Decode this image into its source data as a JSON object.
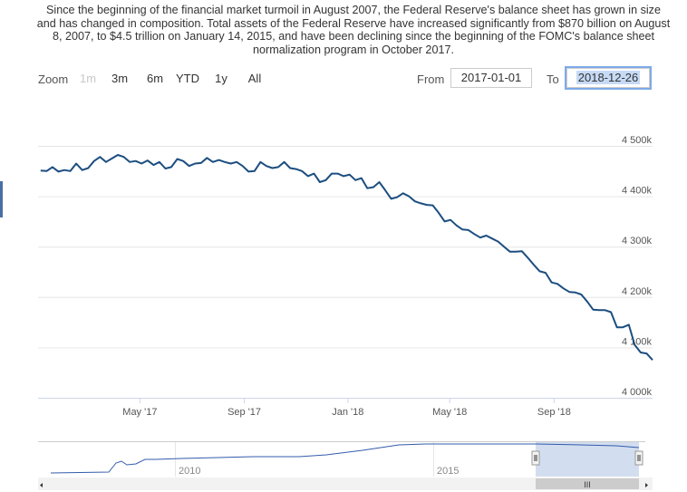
{
  "description": "Since the beginning of the financial market turmoil in August 2007, the Federal Reserve's balance sheet has grown in size and has changed in composition. Total assets of the Federal Reserve have increased significantly from $870 billion on August 8, 2007, to $4.5 trillion on January 14, 2015, and have been declining since the beginning of the FOMC's balance sheet normalization program in October 2017.",
  "range_selector": {
    "zoom_label": "Zoom",
    "buttons": [
      "1m",
      "3m",
      "6m",
      "YTD",
      "1y",
      "All"
    ],
    "from_label": "From",
    "from_value": "2017-01-01",
    "to_label": "To",
    "to_value": "2018-12-26"
  },
  "colors": {
    "line": "#1c4e80",
    "grid": "#e6e6e6",
    "navigator_mask": "#c3d2ea",
    "accent": "#4a6fa5"
  },
  "chart_data": {
    "type": "line",
    "x_range": [
      "2017-01-01",
      "2018-12-26"
    ],
    "ylim": [
      4000000,
      4500000
    ],
    "y_ticks": [
      {
        "value": 4000000,
        "label": "4 000k"
      },
      {
        "value": 4100000,
        "label": "4 100k"
      },
      {
        "value": 4200000,
        "label": "4 200k"
      },
      {
        "value": 4300000,
        "label": "4 300k"
      },
      {
        "value": 4400000,
        "label": "4 400k"
      },
      {
        "value": 4500000,
        "label": "4 500k"
      }
    ],
    "x_ticks": [
      {
        "date": "2017-05-01",
        "label": "May '17"
      },
      {
        "date": "2017-09-01",
        "label": "Sep '17"
      },
      {
        "date": "2018-01-01",
        "label": "Jan '18"
      },
      {
        "date": "2018-05-01",
        "label": "May '18"
      },
      {
        "date": "2018-09-01",
        "label": "Sep '18"
      }
    ],
    "x": [
      "2017-01-04",
      "2017-01-11",
      "2017-01-18",
      "2017-01-25",
      "2017-02-01",
      "2017-02-08",
      "2017-02-15",
      "2017-02-22",
      "2017-03-01",
      "2017-03-08",
      "2017-03-15",
      "2017-03-22",
      "2017-03-29",
      "2017-04-05",
      "2017-04-12",
      "2017-04-19",
      "2017-04-26",
      "2017-05-03",
      "2017-05-10",
      "2017-05-17",
      "2017-05-24",
      "2017-05-31",
      "2017-06-07",
      "2017-06-14",
      "2017-06-21",
      "2017-06-28",
      "2017-07-05",
      "2017-07-12",
      "2017-07-19",
      "2017-07-26",
      "2017-08-02",
      "2017-08-09",
      "2017-08-16",
      "2017-08-23",
      "2017-08-30",
      "2017-09-06",
      "2017-09-13",
      "2017-09-20",
      "2017-09-27",
      "2017-10-04",
      "2017-10-11",
      "2017-10-18",
      "2017-10-25",
      "2017-11-01",
      "2017-11-08",
      "2017-11-15",
      "2017-11-22",
      "2017-11-29",
      "2017-12-06",
      "2017-12-13",
      "2017-12-20",
      "2017-12-27",
      "2018-01-03",
      "2018-01-10",
      "2018-01-17",
      "2018-01-24",
      "2018-01-31",
      "2018-02-07",
      "2018-02-14",
      "2018-02-21",
      "2018-02-28",
      "2018-03-07",
      "2018-03-14",
      "2018-03-21",
      "2018-03-28",
      "2018-04-04",
      "2018-04-11",
      "2018-04-18",
      "2018-04-25",
      "2018-05-02",
      "2018-05-09",
      "2018-05-16",
      "2018-05-23",
      "2018-05-30",
      "2018-06-06",
      "2018-06-13",
      "2018-06-20",
      "2018-06-27",
      "2018-07-04",
      "2018-07-11",
      "2018-07-18",
      "2018-07-25",
      "2018-08-01",
      "2018-08-08",
      "2018-08-15",
      "2018-08-22",
      "2018-08-29",
      "2018-09-05",
      "2018-09-12",
      "2018-09-19",
      "2018-09-26",
      "2018-10-03",
      "2018-10-10",
      "2018-10-17",
      "2018-10-24",
      "2018-10-31",
      "2018-11-07",
      "2018-11-14",
      "2018-11-21",
      "2018-11-28",
      "2018-12-05",
      "2018-12-12",
      "2018-12-19",
      "2018-12-26"
    ],
    "series": [
      {
        "values": [
          4451000,
          4450000,
          4458000,
          4449000,
          4452000,
          4450000,
          4465000,
          4452000,
          4456000,
          4470000,
          4478000,
          4468000,
          4475000,
          4482000,
          4478000,
          4468000,
          4470000,
          4465000,
          4471000,
          4462000,
          4468000,
          4455000,
          4458000,
          4474000,
          4470000,
          4460000,
          4465000,
          4466000,
          4476000,
          4468000,
          4472000,
          4468000,
          4465000,
          4468000,
          4460000,
          4449000,
          4450000,
          4468000,
          4460000,
          4456000,
          4458000,
          4468000,
          4456000,
          4454000,
          4450000,
          4440000,
          4445000,
          4428000,
          4432000,
          4445000,
          4445000,
          4440000,
          4443000,
          4432000,
          4436000,
          4416000,
          4418000,
          4428000,
          4412000,
          4395000,
          4398000,
          4406000,
          4400000,
          4390000,
          4386000,
          4383000,
          4382000,
          4367000,
          4350000,
          4353000,
          4342000,
          4334000,
          4333000,
          4325000,
          4318000,
          4322000,
          4316000,
          4310000,
          4300000,
          4290000,
          4290000,
          4291000,
          4278000,
          4264000,
          4251000,
          4248000,
          4229000,
          4226000,
          4217000,
          4210000,
          4209000,
          4205000,
          4191000,
          4175000,
          4174000,
          4174000,
          4170000,
          4140000,
          4140000,
          4145000,
          4105000,
          4090000,
          4088000,
          4075000
        ]
      }
    ]
  },
  "navigator": {
    "year_labels": [
      "2010",
      "2015"
    ]
  }
}
